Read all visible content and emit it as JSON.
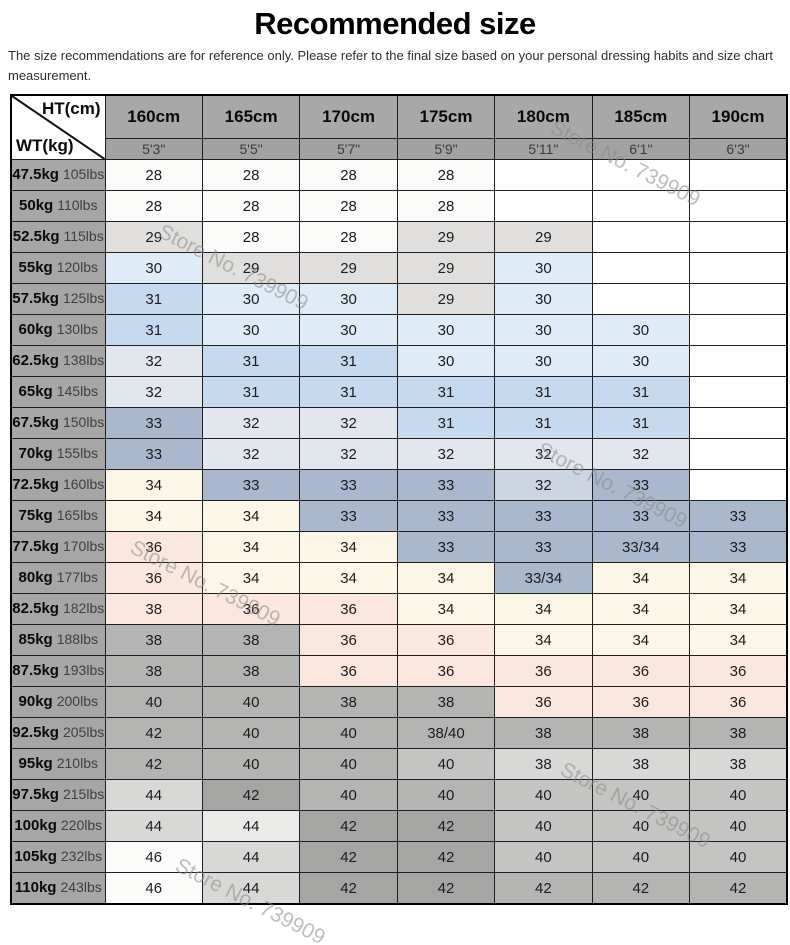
{
  "title": "Recommended size",
  "subtitle": "The size recommendations are for reference only. Please refer to the final size based on your personal dressing habits and size chart measurement.",
  "watermark_text": "Store No. 739909",
  "corner": {
    "top_right": "HT(cm)",
    "bottom_left": "WT(kg)"
  },
  "palette": {
    "w": "#ffffff",
    "w2": "#fbfbfa",
    "g1": "#e0dfdd",
    "b1": "#dfebf6",
    "b2": "#c5daee",
    "v1": "#e2e7ee",
    "v2": "#cdd5e2",
    "b3": "#a9b8cd",
    "c": "#fbf6e5",
    "p": "#fbe7de",
    "gm": "#b4b4b2",
    "gml": "#c4c4c2",
    "gl": "#d8d8d6",
    "gxl": "#eaeae8",
    "gd": "#a5a5a3",
    "header_bg": "#a8a8a8",
    "subheader_bg": "#a2a2a2",
    "rowheader_bg": "#a6a6a6",
    "border": "#1f1f1f"
  },
  "chart_data": {
    "type": "table",
    "title": "Recommended size",
    "x_axis_label": "HT(cm)",
    "y_axis_label": "WT(kg)",
    "columns_height_cm": [
      "160cm",
      "165cm",
      "170cm",
      "175cm",
      "180cm",
      "185cm",
      "190cm"
    ],
    "columns_height_ft": [
      "5'3\"",
      "5'5\"",
      "5'7\"",
      "5'9\"",
      "5'11\"",
      "6'1\"",
      "6'3\""
    ],
    "rows": [
      {
        "kg": "47.5kg",
        "lbs": "105lbs",
        "sizes": [
          "28",
          "28",
          "28",
          "28",
          "",
          "",
          ""
        ],
        "colors": [
          "w2",
          "w2",
          "w2",
          "w2",
          "w",
          "w",
          "w"
        ]
      },
      {
        "kg": "50kg",
        "lbs": "110lbs",
        "sizes": [
          "28",
          "28",
          "28",
          "28",
          "",
          "",
          ""
        ],
        "colors": [
          "w2",
          "w2",
          "w2",
          "w2",
          "w",
          "w",
          "w"
        ]
      },
      {
        "kg": "52.5kg",
        "lbs": "115lbs",
        "sizes": [
          "29",
          "28",
          "28",
          "29",
          "29",
          "",
          ""
        ],
        "colors": [
          "g1",
          "w2",
          "w2",
          "g1",
          "g1",
          "w",
          "w"
        ]
      },
      {
        "kg": "55kg",
        "lbs": "120lbs",
        "sizes": [
          "30",
          "29",
          "29",
          "29",
          "30",
          "",
          ""
        ],
        "colors": [
          "b1",
          "g1",
          "g1",
          "g1",
          "b1",
          "w",
          "w"
        ]
      },
      {
        "kg": "57.5kg",
        "lbs": "125lbs",
        "sizes": [
          "31",
          "30",
          "30",
          "29",
          "30",
          "",
          ""
        ],
        "colors": [
          "b2",
          "b1",
          "b1",
          "g1",
          "b1",
          "w",
          "w"
        ]
      },
      {
        "kg": "60kg",
        "lbs": "130lbs",
        "sizes": [
          "31",
          "30",
          "30",
          "30",
          "30",
          "30",
          ""
        ],
        "colors": [
          "b2",
          "b1",
          "b1",
          "b1",
          "b1",
          "b1",
          "w"
        ]
      },
      {
        "kg": "62.5kg",
        "lbs": "138lbs",
        "sizes": [
          "32",
          "31",
          "31",
          "30",
          "30",
          "30",
          ""
        ],
        "colors": [
          "v1",
          "b2",
          "b2",
          "b1",
          "b1",
          "b1",
          "w"
        ]
      },
      {
        "kg": "65kg",
        "lbs": "145lbs",
        "sizes": [
          "32",
          "31",
          "31",
          "31",
          "31",
          "31",
          ""
        ],
        "colors": [
          "v1",
          "b2",
          "b2",
          "b2",
          "b2",
          "b2",
          "w"
        ]
      },
      {
        "kg": "67.5kg",
        "lbs": "150lbs",
        "sizes": [
          "33",
          "32",
          "32",
          "31",
          "31",
          "31",
          ""
        ],
        "colors": [
          "b3",
          "v1",
          "v1",
          "b2",
          "b2",
          "b2",
          "w"
        ]
      },
      {
        "kg": "70kg",
        "lbs": "155lbs",
        "sizes": [
          "33",
          "32",
          "32",
          "32",
          "32",
          "32",
          ""
        ],
        "colors": [
          "b3",
          "v1",
          "v1",
          "v1",
          "v1",
          "v1",
          "w"
        ]
      },
      {
        "kg": "72.5kg",
        "lbs": "160lbs",
        "sizes": [
          "34",
          "33",
          "33",
          "33",
          "32",
          "33",
          ""
        ],
        "colors": [
          "c",
          "b3",
          "b3",
          "b3",
          "v2",
          "b3",
          "w"
        ]
      },
      {
        "kg": "75kg",
        "lbs": "165lbs",
        "sizes": [
          "34",
          "34",
          "33",
          "33",
          "33",
          "33",
          "33"
        ],
        "colors": [
          "c",
          "c",
          "b3",
          "b3",
          "b3",
          "b3",
          "b3"
        ]
      },
      {
        "kg": "77.5kg",
        "lbs": "170lbs",
        "sizes": [
          "36",
          "34",
          "34",
          "33",
          "33",
          "33/34",
          "33"
        ],
        "colors": [
          "p",
          "c",
          "c",
          "b3",
          "b3",
          "b3",
          "b3"
        ]
      },
      {
        "kg": "80kg",
        "lbs": "177lbs",
        "sizes": [
          "36",
          "34",
          "34",
          "34",
          "33/34",
          "34",
          "34"
        ],
        "colors": [
          "p",
          "c",
          "c",
          "c",
          "b3",
          "c",
          "c"
        ]
      },
      {
        "kg": "82.5kg",
        "lbs": "182lbs",
        "sizes": [
          "38",
          "36",
          "36",
          "34",
          "34",
          "34",
          "34"
        ],
        "colors": [
          "p",
          "p",
          "p",
          "c",
          "c",
          "c",
          "c"
        ]
      },
      {
        "kg": "85kg",
        "lbs": "188lbs",
        "sizes": [
          "38",
          "38",
          "36",
          "36",
          "34",
          "34",
          "34"
        ],
        "colors": [
          "gm",
          "gm",
          "p",
          "p",
          "c",
          "c",
          "c"
        ]
      },
      {
        "kg": "87.5kg",
        "lbs": "193lbs",
        "sizes": [
          "38",
          "38",
          "36",
          "36",
          "36",
          "36",
          "36"
        ],
        "colors": [
          "gm",
          "gm",
          "p",
          "p",
          "p",
          "p",
          "p"
        ]
      },
      {
        "kg": "90kg",
        "lbs": "200lbs",
        "sizes": [
          "40",
          "40",
          "38",
          "38",
          "36",
          "36",
          "36"
        ],
        "colors": [
          "gm",
          "gm",
          "gm",
          "gm",
          "p",
          "p",
          "p"
        ]
      },
      {
        "kg": "92.5kg",
        "lbs": "205lbs",
        "sizes": [
          "42",
          "40",
          "40",
          "38/40",
          "38",
          "38",
          "38"
        ],
        "colors": [
          "gm",
          "gm",
          "gm",
          "gm",
          "gm",
          "gm",
          "gm"
        ]
      },
      {
        "kg": "95kg",
        "lbs": "210lbs",
        "sizes": [
          "42",
          "40",
          "40",
          "40",
          "38",
          "38",
          "38"
        ],
        "colors": [
          "gm",
          "gm",
          "gm",
          "gml",
          "gl",
          "gl",
          "gl"
        ]
      },
      {
        "kg": "97.5kg",
        "lbs": "215lbs",
        "sizes": [
          "44",
          "42",
          "40",
          "40",
          "40",
          "40",
          "40"
        ],
        "colors": [
          "gl",
          "gd",
          "gm",
          "gm",
          "gml",
          "gml",
          "gml"
        ]
      },
      {
        "kg": "100kg",
        "lbs": "220lbs",
        "sizes": [
          "44",
          "44",
          "42",
          "42",
          "40",
          "40",
          "40"
        ],
        "colors": [
          "gl",
          "gxl",
          "gd",
          "gd",
          "gml",
          "gml",
          "gml"
        ]
      },
      {
        "kg": "105kg",
        "lbs": "232lbs",
        "sizes": [
          "46",
          "44",
          "42",
          "42",
          "40",
          "40",
          "40"
        ],
        "colors": [
          "w2",
          "gl",
          "gd",
          "gd",
          "gml",
          "gml",
          "gml"
        ]
      },
      {
        "kg": "110kg",
        "lbs": "243lbs",
        "sizes": [
          "46",
          "44",
          "42",
          "42",
          "42",
          "42",
          "42"
        ],
        "colors": [
          "w2",
          "gl",
          "gd",
          "gd",
          "gm",
          "gm",
          "gm"
        ]
      }
    ]
  }
}
